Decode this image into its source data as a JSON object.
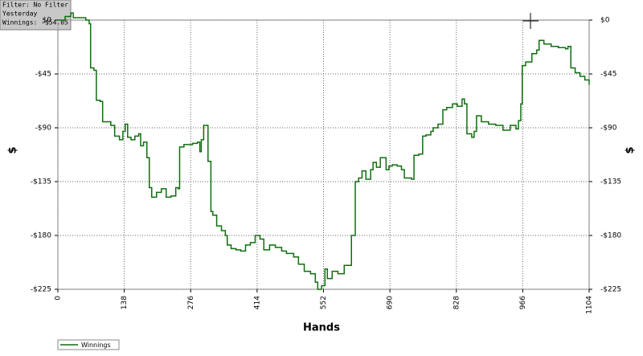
{
  "chart_data": {
    "type": "line",
    "xlabel": "Hands",
    "ylabel": "$",
    "y2label": "$",
    "annotations": [
      "Filter: No Filter",
      "Yesterday",
      "Winnings: -$54.05"
    ],
    "x": [
      0,
      15,
      27,
      32,
      38,
      58,
      65,
      68,
      75,
      80,
      88,
      93,
      110,
      118,
      128,
      135,
      140,
      145,
      152,
      160,
      168,
      172,
      178,
      185,
      190,
      195,
      205,
      215,
      225,
      235,
      245,
      250,
      253,
      262,
      272,
      280,
      290,
      295,
      298,
      303,
      308,
      312,
      318,
      322,
      330,
      340,
      348,
      352,
      360,
      370,
      380,
      390,
      400,
      410,
      420,
      428,
      440,
      452,
      465,
      475,
      490,
      500,
      512,
      525,
      535,
      540,
      548,
      555,
      560,
      570,
      582,
      595,
      605,
      610,
      618,
      625,
      632,
      640,
      650,
      655,
      662,
      670,
      682,
      688,
      695,
      705,
      714,
      720,
      735,
      740,
      750,
      758,
      765,
      775,
      780,
      790,
      800,
      808,
      820,
      830,
      840,
      845,
      850,
      860,
      865,
      870,
      880,
      895,
      910,
      925,
      940,
      952,
      957,
      962,
      965,
      972,
      985,
      995,
      1000,
      1010,
      1025,
      1040,
      1055,
      1060,
      1066,
      1075,
      1085,
      1095,
      1104
    ],
    "series": [
      {
        "name": "Winnings",
        "color": "#0f6e0f",
        "values": [
          0,
          3,
          6,
          2,
          2,
          0,
          -3,
          -40,
          -42,
          -67,
          -68,
          -85,
          -88,
          -97,
          -100,
          -93,
          -87,
          -98,
          -100,
          -97,
          -95,
          -105,
          -102,
          -115,
          -140,
          -148,
          -144,
          -141,
          -148,
          -147,
          -140,
          -141,
          -106,
          -104,
          -104,
          -103,
          -102,
          -110,
          -100,
          -88,
          -88,
          -118,
          -160,
          -163,
          -172,
          -176,
          -180,
          -188,
          -191,
          -192,
          -193,
          -188,
          -186,
          -180,
          -183,
          -192,
          -188,
          -190,
          -193,
          -195,
          -198,
          -204,
          -210,
          -212,
          -219,
          -225,
          -222,
          -208,
          -216,
          -210,
          -212,
          -205,
          -205,
          -180,
          -135,
          -132,
          -126,
          -133,
          -125,
          -119,
          -123,
          -115,
          -125,
          -122,
          -121,
          -122,
          -125,
          -132,
          -133,
          -113,
          -112,
          -97,
          -96,
          -93,
          -90,
          -87,
          -75,
          -73,
          -70,
          -72,
          -66,
          -70,
          -95,
          -98,
          -93,
          -80,
          -85,
          -87,
          -88,
          -92,
          -88,
          -91,
          -84,
          -70,
          -38,
          -35,
          -28,
          -25,
          -17,
          -20,
          -22,
          -23,
          -24,
          -22,
          -40,
          -44,
          -47,
          -50,
          -54.05
        ]
      }
    ],
    "step": "post",
    "xlim": [
      0,
      1104
    ],
    "xticks": [
      0,
      138,
      276,
      414,
      552,
      690,
      828,
      966,
      1104
    ],
    "ylim": [
      -225,
      0
    ],
    "yticks": [
      {
        "value": 0,
        "label": "$0"
      },
      {
        "value": -45,
        "label": "-$45"
      },
      {
        "value": -90,
        "label": "-$90"
      },
      {
        "value": -135,
        "label": "-$135"
      },
      {
        "value": -180,
        "label": "-$180"
      },
      {
        "value": -225,
        "label": "-$225"
      }
    ],
    "y2lim": [
      -225,
      0
    ],
    "y2ticks": [
      {
        "value": 0,
        "label": "$0"
      },
      {
        "value": -45,
        "label": "-$45"
      },
      {
        "value": -90,
        "label": "-$90"
      },
      {
        "value": -135,
        "label": "-$135"
      },
      {
        "value": -180,
        "label": "-$180"
      },
      {
        "value": -225,
        "label": "-$225"
      }
    ],
    "grid": true,
    "legend": "bottom-left"
  }
}
